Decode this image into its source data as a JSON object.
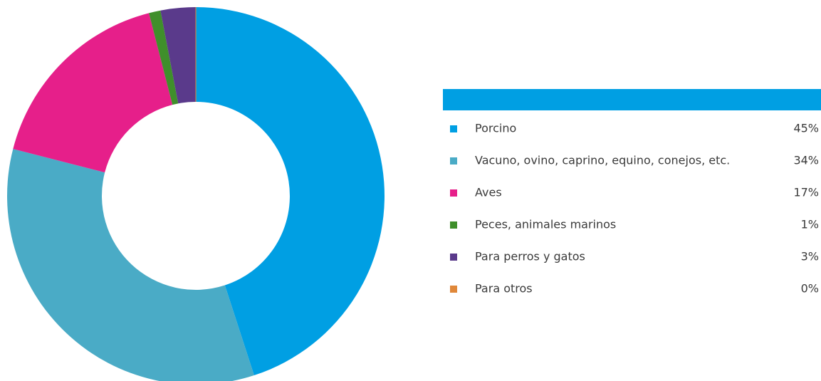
{
  "chart_data": {
    "type": "pie",
    "categories": [
      "Porcino",
      "Vacuno, ovino, caprino, equino, conejos, etc.",
      "Aves",
      "Peces, animales marinos",
      "Para perros y gatos",
      "Para otros"
    ],
    "values": [
      45,
      34,
      17,
      1,
      3,
      0
    ],
    "value_labels": [
      "45%",
      "34%",
      "17%",
      "1%",
      "3%",
      "0%"
    ],
    "colors": [
      "#009fe3",
      "#4aabc6",
      "#e61f8a",
      "#3f8f2b",
      "#5a3a8b",
      "#e0883a"
    ],
    "legend_position": "right"
  }
}
